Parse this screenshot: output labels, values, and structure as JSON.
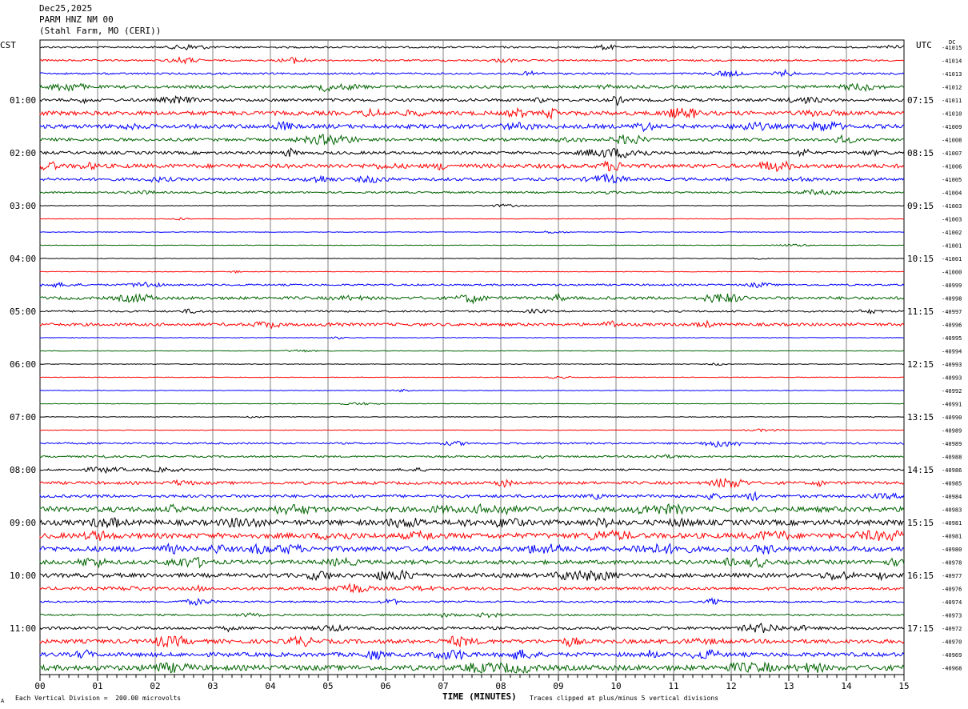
{
  "header": {
    "date": "Dec25,2025",
    "station": "PARM HNZ NM 00",
    "location": "(Stahl Farm, MO (CERI))"
  },
  "left_axis_label": "CST",
  "right_axis_label": "UTC",
  "dc_label": "DC",
  "footer": {
    "scale_note": "Each Vertical Division =  200.00 microvolts",
    "xlabel": "TIME (MINUTES)",
    "clip_note": "Traces clipped at plus/minus 5 vertical divisions",
    "mark": "A"
  },
  "colors": {
    "trace_cycle": [
      "#000000",
      "#ff0000",
      "#0000ff",
      "#006400"
    ],
    "grid": "#808080"
  },
  "chart_data": {
    "type": "helicorder",
    "title": "PARM HNZ NM 00",
    "xlabel": "TIME (MINUTES)",
    "x_ticks": [
      "00",
      "01",
      "02",
      "03",
      "04",
      "05",
      "06",
      "07",
      "08",
      "09",
      "10",
      "11",
      "12",
      "13",
      "14",
      "15"
    ],
    "xlim": [
      0,
      15
    ],
    "traces_per_hour": 4,
    "left_hour_labels": [
      "01:00",
      "02:00",
      "03:00",
      "04:00",
      "05:00",
      "06:00",
      "07:00",
      "08:00",
      "09:00",
      "10:00",
      "11:00"
    ],
    "right_hour_labels": [
      "07:15",
      "08:15",
      "09:15",
      "10:15",
      "11:15",
      "12:15",
      "13:15",
      "14:15",
      "15:15",
      "16:15",
      "17:15"
    ],
    "dc_offsets": [
      "-41015",
      "-41014",
      "-41013",
      "-41012",
      "-41011",
      "-41010",
      "-41009",
      "-41008",
      "-41007",
      "-41006",
      "-41005",
      "-41004",
      "-41003",
      "-41003",
      "-41002",
      "-41001",
      "-41001",
      "-41000",
      "-40999",
      "-40998",
      "-40997",
      "-40996",
      "-40995",
      "-40994",
      "-40993",
      "-40993",
      "-40992",
      "-40991",
      "-40990",
      "-40989",
      "-40989",
      "-40988",
      "-40986",
      "-40985",
      "-40984",
      "-40983",
      "-40981",
      "-40981",
      "-40980",
      "-40978",
      "-40977",
      "-40976",
      "-40974",
      "-40973",
      "-40972",
      "-40970",
      "-40969",
      "-40968"
    ],
    "trace_activity": [
      1,
      1,
      1,
      2,
      2,
      3,
      3,
      2,
      2,
      3,
      2,
      1,
      0,
      0,
      0,
      0,
      0,
      0,
      1,
      2,
      1,
      2,
      0,
      0,
      0,
      0,
      0,
      0,
      0,
      0,
      1,
      1,
      1,
      2,
      2,
      4,
      4,
      4,
      4,
      3,
      3,
      2,
      1,
      1,
      2,
      3,
      3,
      4
    ]
  }
}
